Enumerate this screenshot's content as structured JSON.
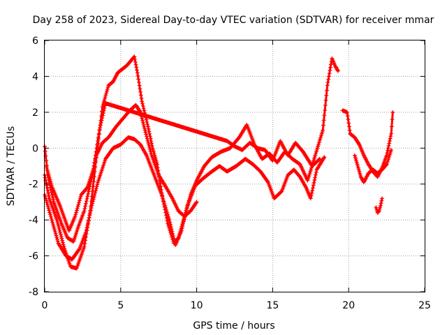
{
  "chart_data": {
    "type": "scatter",
    "title": "Day 258 of 2023, Sidereal Day-to-day VTEC variation (SDTVAR) for receiver mmar",
    "xlabel": "GPS time / hours",
    "ylabel": "SDTVAR / TECUs",
    "xlim": [
      0,
      25
    ],
    "ylim": [
      -8,
      6
    ],
    "xticks": [
      "0",
      "5",
      "10",
      "15",
      "20",
      "25"
    ],
    "yticks": [
      "-8",
      "-6",
      "-4",
      "-2",
      "0",
      "2",
      "4",
      "6"
    ],
    "grid": true,
    "marker": "+",
    "series": [
      {
        "name": "trace-upper",
        "color": "#ff0000",
        "points": [
          [
            0.0,
            -1.5
          ],
          [
            0.3,
            -2.8
          ],
          [
            0.8,
            -4.0
          ],
          [
            1.3,
            -5.6
          ],
          [
            1.7,
            -6.6
          ],
          [
            2.1,
            -6.7
          ],
          [
            2.6,
            -5.5
          ],
          [
            3.0,
            -3.5
          ],
          [
            3.4,
            -0.5
          ],
          [
            3.8,
            2.3
          ],
          [
            4.2,
            3.5
          ],
          [
            4.5,
            3.7
          ],
          [
            4.8,
            4.2
          ],
          [
            5.1,
            4.4
          ],
          [
            5.4,
            4.6
          ],
          [
            5.7,
            4.9
          ],
          [
            5.9,
            5.1
          ],
          [
            6.1,
            4.2
          ],
          [
            6.4,
            2.6
          ],
          [
            6.8,
            1.2
          ],
          [
            7.1,
            0.0
          ],
          [
            7.4,
            -0.9
          ],
          [
            7.7,
            -2.5
          ],
          [
            8.1,
            -4.2
          ],
          [
            8.5,
            -5.3
          ],
          [
            8.8,
            -5.0
          ],
          [
            9.2,
            -3.8
          ],
          [
            9.6,
            -2.6
          ],
          [
            10.0,
            -1.8
          ],
          [
            10.5,
            -1.0
          ],
          [
            11.0,
            -0.5
          ],
          [
            11.6,
            -0.2
          ],
          [
            12.2,
            0.0
          ],
          [
            12.8,
            0.6
          ],
          [
            13.3,
            1.3
          ],
          [
            13.8,
            0.2
          ],
          [
            14.3,
            -0.6
          ],
          [
            14.8,
            -0.3
          ],
          [
            15.3,
            -0.8
          ],
          [
            15.8,
            -0.2
          ],
          [
            16.3,
            -0.6
          ],
          [
            16.8,
            -0.9
          ],
          [
            17.3,
            -1.8
          ],
          [
            17.8,
            -0.4
          ],
          [
            18.3,
            1.0
          ],
          [
            18.6,
            3.5
          ],
          [
            18.9,
            5.0
          ],
          [
            19.1,
            4.6
          ],
          [
            19.3,
            4.3
          ]
        ]
      },
      {
        "name": "trace-middle",
        "color": "#ff0000",
        "points": [
          [
            0.0,
            0.1
          ],
          [
            0.2,
            -1.5
          ],
          [
            0.6,
            -3.0
          ],
          [
            1.1,
            -4.2
          ],
          [
            1.5,
            -5.0
          ],
          [
            1.9,
            -5.2
          ],
          [
            2.2,
            -4.4
          ],
          [
            2.6,
            -3.5
          ],
          [
            3.0,
            -2.0
          ],
          [
            3.4,
            -0.4
          ],
          [
            3.8,
            0.3
          ],
          [
            4.2,
            0.6
          ],
          [
            4.7,
            1.2
          ],
          [
            5.2,
            1.7
          ],
          [
            5.6,
            2.1
          ],
          [
            6.0,
            2.4
          ],
          [
            6.3,
            2.0
          ],
          [
            6.6,
            1.0
          ],
          [
            7.0,
            -0.3
          ],
          [
            7.5,
            -1.5
          ],
          [
            8.0,
            -2.2
          ],
          [
            8.4,
            -2.8
          ],
          [
            8.8,
            -3.5
          ],
          [
            9.2,
            -3.8
          ],
          [
            9.6,
            -3.5
          ],
          [
            10.0,
            -3.0
          ]
        ]
      },
      {
        "name": "trace-lower",
        "color": "#ff0000",
        "points": [
          [
            0.0,
            -2.6
          ],
          [
            0.4,
            -3.8
          ],
          [
            0.9,
            -5.3
          ],
          [
            1.4,
            -6.0
          ],
          [
            1.8,
            -6.2
          ],
          [
            2.3,
            -5.6
          ],
          [
            2.7,
            -4.7
          ],
          [
            3.1,
            -3.2
          ],
          [
            3.5,
            -1.9
          ],
          [
            4.0,
            -0.6
          ],
          [
            4.5,
            0.0
          ],
          [
            5.0,
            0.2
          ],
          [
            5.5,
            0.6
          ],
          [
            5.9,
            0.5
          ],
          [
            6.3,
            0.2
          ],
          [
            6.7,
            -0.4
          ],
          [
            7.2,
            -1.5
          ],
          [
            7.7,
            -2.6
          ],
          [
            8.2,
            -4.0
          ],
          [
            8.6,
            -5.4
          ],
          [
            9.0,
            -4.6
          ],
          [
            9.4,
            -3.2
          ],
          [
            9.9,
            -2.1
          ],
          [
            10.4,
            -1.7
          ],
          [
            11.0,
            -1.3
          ],
          [
            11.5,
            -1.0
          ],
          [
            12.0,
            -1.3
          ],
          [
            12.6,
            -1.0
          ],
          [
            13.2,
            -0.6
          ],
          [
            13.7,
            -0.9
          ],
          [
            14.2,
            -1.3
          ],
          [
            14.7,
            -1.9
          ],
          [
            15.1,
            -2.8
          ],
          [
            15.6,
            -2.4
          ],
          [
            16.0,
            -1.5
          ],
          [
            16.4,
            -1.2
          ],
          [
            16.8,
            -1.6
          ],
          [
            17.2,
            -2.2
          ],
          [
            17.5,
            -2.8
          ],
          [
            17.9,
            -1.2
          ],
          [
            18.4,
            -0.5
          ]
        ]
      },
      {
        "name": "trace-scatter",
        "color": "#ff0000",
        "points": [
          [
            0.1,
            -1.0
          ],
          [
            0.5,
            -2.2
          ],
          [
            1.0,
            -3.2
          ],
          [
            1.6,
            -4.6
          ],
          [
            2.0,
            -3.8
          ],
          [
            2.4,
            -2.6
          ],
          [
            2.8,
            -2.2
          ],
          [
            3.2,
            -1.2
          ],
          [
            3.6,
            1.0
          ],
          [
            4.0,
            2.5
          ],
          [
            12.0,
            0.4
          ],
          [
            12.5,
            0.1
          ],
          [
            13.0,
            -0.1
          ],
          [
            13.5,
            0.3
          ],
          [
            14.0,
            0.0
          ],
          [
            14.5,
            -0.1
          ],
          [
            15.0,
            -0.7
          ],
          [
            15.5,
            0.4
          ],
          [
            16.0,
            -0.4
          ],
          [
            16.5,
            0.3
          ],
          [
            17.0,
            -0.2
          ],
          [
            17.6,
            -1.0
          ],
          [
            18.1,
            -0.6
          ]
        ]
      },
      {
        "name": "trace-late",
        "color": "#ff0000",
        "points": [
          [
            19.6,
            2.1
          ],
          [
            19.9,
            2.0
          ],
          [
            20.1,
            0.8
          ],
          [
            20.4,
            0.6
          ],
          [
            20.7,
            0.2
          ],
          [
            21.0,
            -0.4
          ],
          [
            21.3,
            -0.9
          ],
          [
            21.6,
            -1.3
          ],
          [
            21.9,
            -1.6
          ],
          [
            22.2,
            -1.1
          ],
          [
            22.5,
            -0.4
          ],
          [
            22.8,
            0.8
          ],
          [
            22.9,
            2.0
          ]
        ]
      },
      {
        "name": "trace-late-lower",
        "color": "#ff0000",
        "points": [
          [
            20.4,
            -0.4
          ],
          [
            20.6,
            -1.0
          ],
          [
            20.8,
            -1.6
          ],
          [
            21.0,
            -1.9
          ],
          [
            21.3,
            -1.4
          ],
          [
            21.6,
            -1.2
          ],
          [
            21.9,
            -1.4
          ],
          [
            22.2,
            -1.2
          ],
          [
            22.5,
            -0.9
          ],
          [
            22.8,
            -0.1
          ]
        ]
      },
      {
        "name": "trace-late-dip",
        "color": "#ff0000",
        "points": [
          [
            21.8,
            -3.3
          ],
          [
            21.9,
            -3.6
          ],
          [
            22.0,
            -3.5
          ],
          [
            22.1,
            -3.2
          ],
          [
            22.2,
            -2.8
          ]
        ]
      }
    ]
  }
}
